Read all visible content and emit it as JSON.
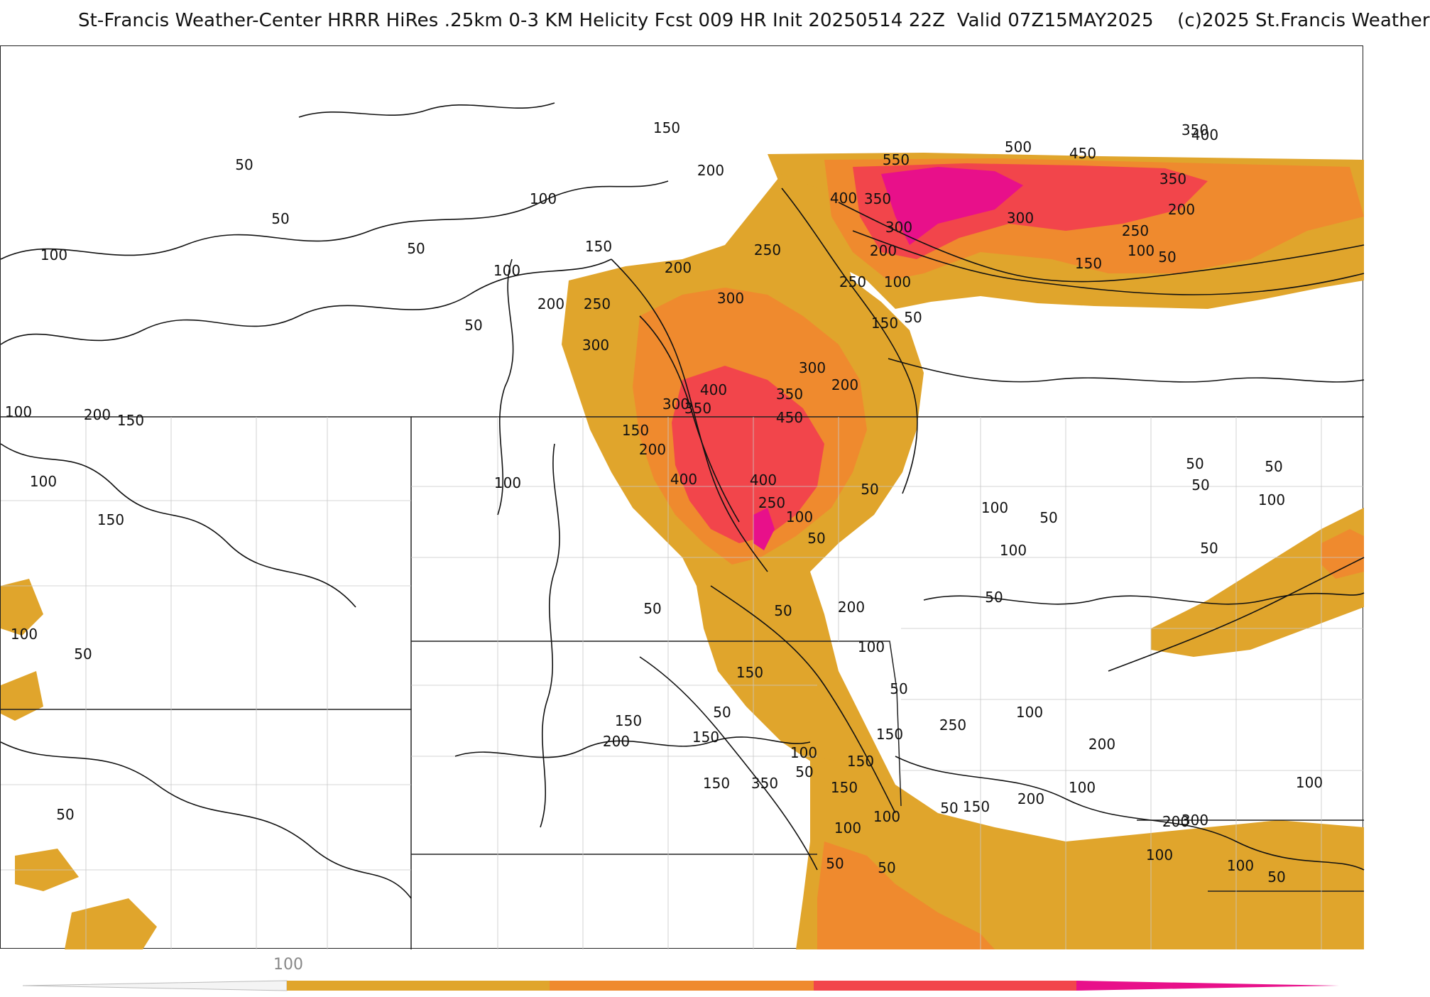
{
  "header": {
    "title": "St-Francis Weather-Center HRRR HiRes .25km 0-3 KM Helicity Fcst 009 HR Init 20250514 22Z  Valid 07Z15MAY2025    (c)2025 St.Francis Weather"
  },
  "map": {
    "fill_colors": {
      "level_150": "#e0a52c",
      "level_250": "#ef8a2e",
      "level_350": "#f2454b",
      "level_500": "#e8108a"
    },
    "contour_color": "#111111",
    "border_color": "#222222",
    "county_color": "#c8c8c8",
    "labels": [
      {
        "text": "150",
        "id": "lbl-1"
      },
      {
        "text": "200",
        "id": "lbl-2"
      },
      {
        "text": "50",
        "id": "lbl-3"
      },
      {
        "text": "50",
        "id": "lbl-4"
      },
      {
        "text": "100",
        "id": "lbl-5"
      },
      {
        "text": "100",
        "id": "lbl-6"
      },
      {
        "text": "50",
        "id": "lbl-7"
      },
      {
        "text": "100",
        "id": "lbl-8"
      },
      {
        "text": "150",
        "id": "lbl-9"
      },
      {
        "text": "200",
        "id": "lbl-10"
      },
      {
        "text": "250",
        "id": "lbl-11"
      },
      {
        "text": "200",
        "id": "lbl-12"
      },
      {
        "text": "250",
        "id": "lbl-13"
      },
      {
        "text": "300",
        "id": "lbl-14"
      },
      {
        "text": "50",
        "id": "lbl-15"
      },
      {
        "text": "300",
        "id": "lbl-16"
      },
      {
        "text": "550",
        "id": "lbl-17"
      },
      {
        "text": "500",
        "id": "lbl-18"
      },
      {
        "text": "450",
        "id": "lbl-19"
      },
      {
        "text": "400",
        "id": "lbl-20"
      },
      {
        "text": "350",
        "id": "lbl-21"
      },
      {
        "text": "350",
        "id": "lbl-22"
      },
      {
        "text": "400",
        "id": "lbl-23"
      },
      {
        "text": "350",
        "id": "lbl-24"
      },
      {
        "text": "300",
        "id": "lbl-25"
      },
      {
        "text": "200",
        "id": "lbl-26"
      },
      {
        "text": "250",
        "id": "lbl-27"
      },
      {
        "text": "300",
        "id": "lbl-28"
      },
      {
        "text": "200",
        "id": "lbl-29"
      },
      {
        "text": "250",
        "id": "lbl-30"
      },
      {
        "text": "100",
        "id": "lbl-31"
      },
      {
        "text": "150",
        "id": "lbl-32"
      },
      {
        "text": "100",
        "id": "lbl-33"
      },
      {
        "text": "50",
        "id": "lbl-34"
      },
      {
        "text": "150",
        "id": "lbl-35"
      },
      {
        "text": "50",
        "id": "lbl-36"
      },
      {
        "text": "300",
        "id": "lbl-37"
      },
      {
        "text": "200",
        "id": "lbl-38"
      },
      {
        "text": "400",
        "id": "lbl-39"
      },
      {
        "text": "350",
        "id": "lbl-40"
      },
      {
        "text": "300",
        "id": "lbl-41"
      },
      {
        "text": "450",
        "id": "lbl-42"
      },
      {
        "text": "350",
        "id": "lbl-43"
      },
      {
        "text": "150",
        "id": "lbl-44"
      },
      {
        "text": "200",
        "id": "lbl-45"
      },
      {
        "text": "400",
        "id": "lbl-46"
      },
      {
        "text": "400",
        "id": "lbl-47"
      },
      {
        "text": "250",
        "id": "lbl-48"
      },
      {
        "text": "50",
        "id": "lbl-49"
      },
      {
        "text": "100",
        "id": "lbl-50"
      },
      {
        "text": "50",
        "id": "lbl-51"
      },
      {
        "text": "100",
        "id": "lbl-52"
      },
      {
        "text": "50",
        "id": "lbl-53"
      },
      {
        "text": "100",
        "id": "lbl-54"
      },
      {
        "text": "50",
        "id": "lbl-55"
      },
      {
        "text": "50",
        "id": "lbl-56"
      },
      {
        "text": "50",
        "id": "lbl-57"
      },
      {
        "text": "100",
        "id": "lbl-58"
      },
      {
        "text": "200",
        "id": "lbl-59"
      },
      {
        "text": "150",
        "id": "lbl-60"
      },
      {
        "text": "100",
        "id": "lbl-61"
      },
      {
        "text": "150",
        "id": "lbl-62"
      },
      {
        "text": "100",
        "id": "lbl-63"
      },
      {
        "text": "50",
        "id": "lbl-64"
      },
      {
        "text": "100",
        "id": "lbl-65"
      },
      {
        "text": "100",
        "id": "lbl-66"
      },
      {
        "text": "50",
        "id": "lbl-67"
      },
      {
        "text": "50",
        "id": "lbl-68"
      },
      {
        "text": "200",
        "id": "lbl-69"
      },
      {
        "text": "50",
        "id": "lbl-70"
      },
      {
        "text": "50",
        "id": "lbl-71"
      },
      {
        "text": "100",
        "id": "lbl-72"
      },
      {
        "text": "150",
        "id": "lbl-73"
      },
      {
        "text": "50",
        "id": "lbl-74"
      },
      {
        "text": "50",
        "id": "lbl-75"
      },
      {
        "text": "150",
        "id": "lbl-76"
      },
      {
        "text": "100",
        "id": "lbl-77"
      },
      {
        "text": "150",
        "id": "lbl-78"
      },
      {
        "text": "100",
        "id": "lbl-79"
      },
      {
        "text": "200",
        "id": "lbl-80"
      },
      {
        "text": "250",
        "id": "lbl-81"
      },
      {
        "text": "150",
        "id": "lbl-82"
      },
      {
        "text": "50",
        "id": "lbl-83"
      },
      {
        "text": "150",
        "id": "lbl-84"
      },
      {
        "text": "200",
        "id": "lbl-85"
      },
      {
        "text": "150",
        "id": "lbl-86"
      },
      {
        "text": "350",
        "id": "lbl-87"
      },
      {
        "text": "150",
        "id": "lbl-88"
      },
      {
        "text": "200",
        "id": "lbl-89"
      },
      {
        "text": "150",
        "id": "lbl-90"
      },
      {
        "text": "100",
        "id": "lbl-91"
      },
      {
        "text": "100",
        "id": "lbl-92"
      },
      {
        "text": "300",
        "id": "lbl-93"
      },
      {
        "text": "100",
        "id": "lbl-94"
      },
      {
        "text": "200",
        "id": "lbl-95"
      },
      {
        "text": "50",
        "id": "lbl-96"
      },
      {
        "text": "100",
        "id": "lbl-97"
      },
      {
        "text": "50",
        "id": "lbl-98"
      },
      {
        "text": "100",
        "id": "lbl-99"
      },
      {
        "text": "50",
        "id": "lbl-100"
      },
      {
        "text": "100",
        "id": "lbl-101"
      },
      {
        "text": "50",
        "id": "lbl-102"
      },
      {
        "text": "50",
        "id": "lbl-103"
      }
    ]
  },
  "colorbar": {
    "tick_label": "100",
    "segments": [
      "#e0a52c",
      "#ef8a2e",
      "#f2454b",
      "#e8108a"
    ]
  }
}
